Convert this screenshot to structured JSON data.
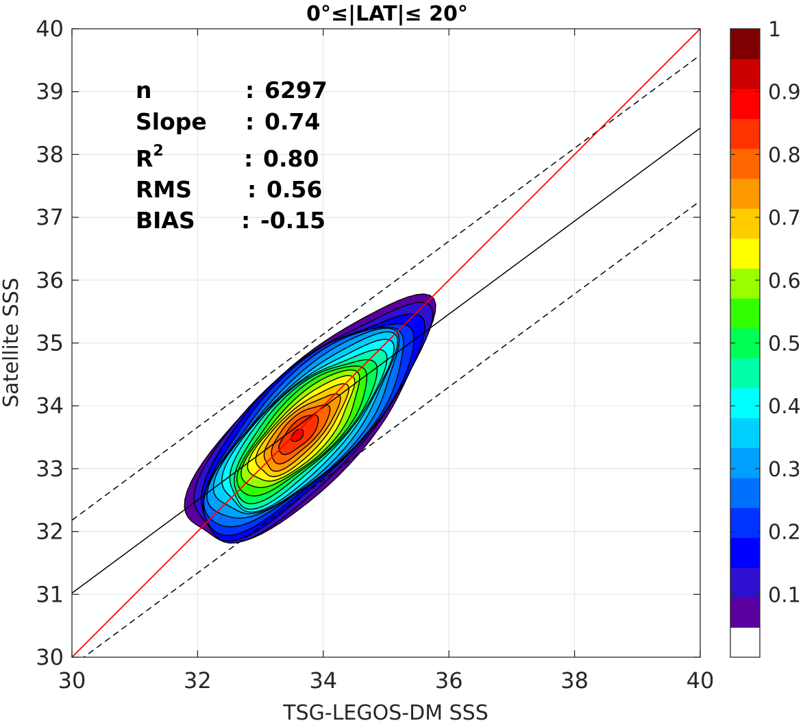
{
  "chart_data": {
    "type": "contour",
    "title": "0°≤|LAT|≤ 20°",
    "xlabel": "TSG-LEGOS-DM SSS",
    "ylabel": "Satellite SSS",
    "xlim": [
      30,
      40
    ],
    "ylim": [
      30,
      40
    ],
    "xticks": [
      "30",
      "32",
      "34",
      "36",
      "38",
      "40"
    ],
    "yticks": [
      "30",
      "31",
      "32",
      "33",
      "34",
      "35",
      "36",
      "37",
      "38",
      "39",
      "40"
    ],
    "grid": true,
    "stats": [
      {
        "label": "n",
        "sep": ":",
        "value": "6297"
      },
      {
        "label": "Slope",
        "sep": ":",
        "value": "0.74"
      },
      {
        "label": "R",
        "sup": "2",
        "sep": ":",
        "value": "0.80"
      },
      {
        "label": "RMS",
        "sep": ":",
        "value": "0.56"
      },
      {
        "label": "BIAS",
        "sep": ":",
        "value": "-0.15"
      }
    ],
    "lines": {
      "identity": {
        "from": [
          30,
          30
        ],
        "to": [
          40,
          40
        ],
        "color": "#ff0000"
      },
      "regression": {
        "from": [
          30,
          31.02
        ],
        "to": [
          40,
          38.42
        ],
        "color": "#000000"
      },
      "upper_dashed": {
        "from": [
          30,
          32.18
        ],
        "to": [
          40,
          39.58
        ],
        "color": "#000000"
      },
      "lower_dashed": {
        "from": [
          30,
          29.86
        ],
        "to": [
          40,
          37.26
        ],
        "color": "#000000"
      }
    },
    "density_center": [
      33.58,
      33.52
    ],
    "density_max": 1,
    "colorbar": {
      "ticks": [
        "0.1",
        "0.2",
        "0.3",
        "0.4",
        "0.5",
        "0.6",
        "0.7",
        "0.8",
        "0.9",
        "1"
      ],
      "colors": [
        "#ffffff",
        "#5a009f",
        "#2f0fd0",
        "#0000ff",
        "#0033ff",
        "#0070ff",
        "#00a0ff",
        "#00d0ff",
        "#00ffff",
        "#00ffaa",
        "#00ff55",
        "#33ff00",
        "#99ff00",
        "#ffff00",
        "#ffcc00",
        "#ff9900",
        "#ff6600",
        "#ff3300",
        "#ff0000",
        "#cc0000",
        "#7f0000"
      ]
    }
  }
}
